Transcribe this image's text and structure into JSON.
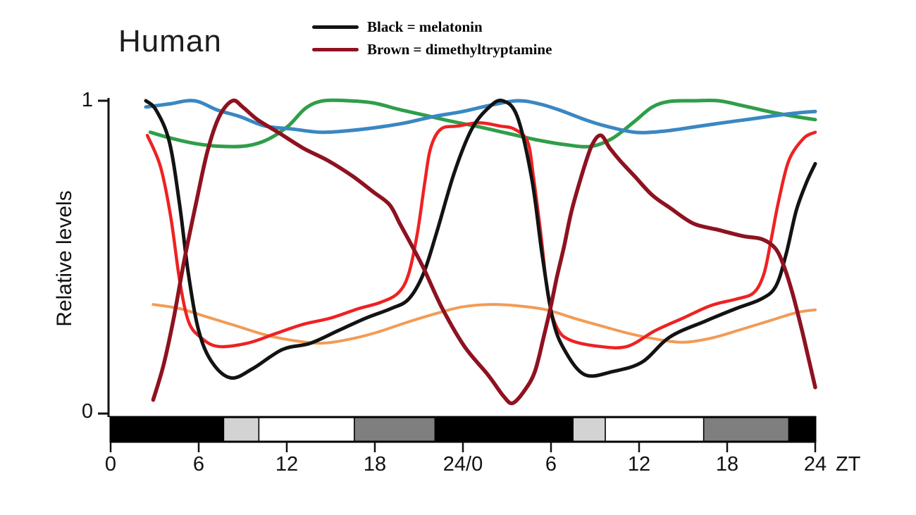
{
  "chart_data": {
    "type": "line",
    "title": "Human",
    "ylabel": "Relative levels",
    "x_axis_unit": "ZT",
    "ylim": [
      0,
      1
    ],
    "xlim_hours": [
      0,
      48
    ],
    "grid": false,
    "legend_position": "top",
    "y_ticks": [
      {
        "value": 1,
        "label": "1"
      },
      {
        "value": 0,
        "label": "0"
      }
    ],
    "x_ticks": [
      {
        "hour": 0,
        "label": "0"
      },
      {
        "hour": 6,
        "label": "6"
      },
      {
        "hour": 12,
        "label": "12"
      },
      {
        "hour": 18,
        "label": "18"
      },
      {
        "hour": 24,
        "label": "24/0"
      },
      {
        "hour": 30,
        "label": "6"
      },
      {
        "hour": 36,
        "label": "12"
      },
      {
        "hour": 42,
        "label": "18"
      },
      {
        "hour": 48,
        "label": "24"
      }
    ],
    "legend": [
      {
        "label": "Black = melatonin",
        "color": "#131313"
      },
      {
        "label": "Brown = dimethyltryptamine",
        "color": "#8e1220"
      }
    ],
    "light_dark_bar": {
      "segments": [
        {
          "from": 0,
          "to": 7.7,
          "color": "#000000"
        },
        {
          "from": 7.7,
          "to": 10.1,
          "color": "#d3d3d3"
        },
        {
          "from": 10.1,
          "to": 16.6,
          "color": "#ffffff"
        },
        {
          "from": 16.6,
          "to": 22.1,
          "color": "#7f7f7f"
        },
        {
          "from": 22.1,
          "to": 31.5,
          "color": "#000000"
        },
        {
          "from": 31.5,
          "to": 33.7,
          "color": "#d3d3d3"
        },
        {
          "from": 33.7,
          "to": 40.4,
          "color": "#ffffff"
        },
        {
          "from": 40.4,
          "to": 46.2,
          "color": "#7f7f7f"
        },
        {
          "from": 46.2,
          "to": 48,
          "color": "#000000"
        }
      ]
    },
    "series": [
      {
        "name": "orange",
        "color": "#f29b55",
        "width": 4,
        "points": [
          [
            2.9,
            0.353
          ],
          [
            4.7,
            0.34
          ],
          [
            6.6,
            0.313
          ],
          [
            8.5,
            0.286
          ],
          [
            10.5,
            0.257
          ],
          [
            12.4,
            0.239
          ],
          [
            14.3,
            0.23
          ],
          [
            16.2,
            0.242
          ],
          [
            18.1,
            0.264
          ],
          [
            20.1,
            0.295
          ],
          [
            22.0,
            0.322
          ],
          [
            23.9,
            0.345
          ],
          [
            25.8,
            0.353
          ],
          [
            27.7,
            0.349
          ],
          [
            29.7,
            0.336
          ],
          [
            31.6,
            0.309
          ],
          [
            33.5,
            0.284
          ],
          [
            35.4,
            0.26
          ],
          [
            37.3,
            0.242
          ],
          [
            39.0,
            0.233
          ],
          [
            40.9,
            0.246
          ],
          [
            42.9,
            0.273
          ],
          [
            44.8,
            0.3
          ],
          [
            46.7,
            0.327
          ],
          [
            48.0,
            0.336
          ]
        ]
      },
      {
        "name": "green",
        "color": "#2f9e49",
        "width": 5,
        "points": [
          [
            2.7,
            0.9
          ],
          [
            4.2,
            0.88
          ],
          [
            5.9,
            0.863
          ],
          [
            7.6,
            0.855
          ],
          [
            9.3,
            0.857
          ],
          [
            10.7,
            0.877
          ],
          [
            12.1,
            0.92
          ],
          [
            13.3,
            0.977
          ],
          [
            14.5,
            1.0
          ],
          [
            16.2,
            1.0
          ],
          [
            17.9,
            0.993
          ],
          [
            19.6,
            0.973
          ],
          [
            21.3,
            0.955
          ],
          [
            23.2,
            0.935
          ],
          [
            25.1,
            0.917
          ],
          [
            27.0,
            0.897
          ],
          [
            28.9,
            0.877
          ],
          [
            30.9,
            0.861
          ],
          [
            32.7,
            0.855
          ],
          [
            34.2,
            0.881
          ],
          [
            35.7,
            0.935
          ],
          [
            36.9,
            0.98
          ],
          [
            38.1,
            0.998
          ],
          [
            39.7,
            1.0
          ],
          [
            41.4,
            1.0
          ],
          [
            43.1,
            0.984
          ],
          [
            44.8,
            0.966
          ],
          [
            46.5,
            0.951
          ],
          [
            48.0,
            0.94
          ]
        ]
      },
      {
        "name": "blue",
        "color": "#3a87c2",
        "width": 5,
        "points": [
          [
            2.4,
            0.98
          ],
          [
            4.0,
            0.99
          ],
          [
            5.7,
            1.0
          ],
          [
            7.3,
            0.97
          ],
          [
            8.8,
            0.95
          ],
          [
            10.5,
            0.92
          ],
          [
            12.4,
            0.91
          ],
          [
            14.3,
            0.9
          ],
          [
            16.2,
            0.905
          ],
          [
            18.1,
            0.915
          ],
          [
            20.1,
            0.93
          ],
          [
            22.0,
            0.95
          ],
          [
            23.9,
            0.965
          ],
          [
            25.8,
            0.985
          ],
          [
            27.7,
            1.0
          ],
          [
            29.2,
            0.99
          ],
          [
            30.6,
            0.97
          ],
          [
            32.3,
            0.94
          ],
          [
            33.7,
            0.92
          ],
          [
            35.7,
            0.9
          ],
          [
            37.6,
            0.903
          ],
          [
            39.5,
            0.915
          ],
          [
            41.4,
            0.928
          ],
          [
            43.3,
            0.94
          ],
          [
            45.3,
            0.953
          ],
          [
            46.9,
            0.962
          ],
          [
            48.0,
            0.966
          ]
        ]
      },
      {
        "name": "red",
        "color": "#ee2222",
        "width": 4.5,
        "points": [
          [
            2.5,
            0.89
          ],
          [
            3.4,
            0.79
          ],
          [
            4.1,
            0.63
          ],
          [
            4.7,
            0.43
          ],
          [
            5.3,
            0.3
          ],
          [
            6.1,
            0.25
          ],
          [
            7.3,
            0.22
          ],
          [
            9.3,
            0.23
          ],
          [
            11.2,
            0.26
          ],
          [
            13.1,
            0.29
          ],
          [
            15.0,
            0.31
          ],
          [
            16.9,
            0.34
          ],
          [
            18.4,
            0.36
          ],
          [
            19.6,
            0.39
          ],
          [
            20.3,
            0.45
          ],
          [
            20.9,
            0.58
          ],
          [
            21.4,
            0.74
          ],
          [
            21.8,
            0.85
          ],
          [
            22.5,
            0.91
          ],
          [
            23.7,
            0.92
          ],
          [
            25.1,
            0.93
          ],
          [
            26.5,
            0.92
          ],
          [
            27.5,
            0.91
          ],
          [
            28.4,
            0.87
          ],
          [
            28.8,
            0.76
          ],
          [
            29.3,
            0.58
          ],
          [
            29.8,
            0.38
          ],
          [
            30.4,
            0.28
          ],
          [
            31.3,
            0.24
          ],
          [
            33.3,
            0.22
          ],
          [
            35.2,
            0.22
          ],
          [
            37.1,
            0.27
          ],
          [
            39.0,
            0.31
          ],
          [
            40.9,
            0.35
          ],
          [
            42.6,
            0.37
          ],
          [
            43.8,
            0.39
          ],
          [
            44.5,
            0.45
          ],
          [
            45.0,
            0.56
          ],
          [
            45.5,
            0.68
          ],
          [
            46.2,
            0.81
          ],
          [
            47.2,
            0.88
          ],
          [
            48.0,
            0.9
          ]
        ]
      },
      {
        "name": "melatonin",
        "color": "#131313",
        "width": 5,
        "points": [
          [
            2.4,
            1.0
          ],
          [
            3.1,
            0.97
          ],
          [
            4.0,
            0.87
          ],
          [
            4.7,
            0.67
          ],
          [
            5.3,
            0.45
          ],
          [
            6.0,
            0.27
          ],
          [
            6.9,
            0.17
          ],
          [
            8.2,
            0.12
          ],
          [
            9.7,
            0.15
          ],
          [
            11.7,
            0.21
          ],
          [
            13.6,
            0.23
          ],
          [
            15.5,
            0.27
          ],
          [
            17.4,
            0.31
          ],
          [
            19.1,
            0.34
          ],
          [
            20.3,
            0.37
          ],
          [
            21.3,
            0.45
          ],
          [
            22.2,
            0.58
          ],
          [
            23.4,
            0.77
          ],
          [
            24.6,
            0.91
          ],
          [
            25.8,
            0.98
          ],
          [
            26.7,
            1.0
          ],
          [
            27.7,
            0.95
          ],
          [
            28.7,
            0.75
          ],
          [
            29.4,
            0.51
          ],
          [
            30.1,
            0.31
          ],
          [
            30.9,
            0.21
          ],
          [
            32.3,
            0.13
          ],
          [
            34.2,
            0.14
          ],
          [
            36.2,
            0.17
          ],
          [
            38.1,
            0.25
          ],
          [
            40.5,
            0.3
          ],
          [
            42.6,
            0.34
          ],
          [
            44.3,
            0.37
          ],
          [
            45.3,
            0.41
          ],
          [
            46.0,
            0.51
          ],
          [
            46.7,
            0.65
          ],
          [
            47.4,
            0.74
          ],
          [
            48.0,
            0.8
          ]
        ]
      },
      {
        "name": "dimethyltryptamine",
        "color": "#8e1220",
        "width": 5.5,
        "points": [
          [
            2.9,
            0.05
          ],
          [
            3.6,
            0.16
          ],
          [
            4.3,
            0.31
          ],
          [
            5.0,
            0.49
          ],
          [
            5.8,
            0.67
          ],
          [
            6.6,
            0.84
          ],
          [
            7.4,
            0.95
          ],
          [
            8.3,
            1.0
          ],
          [
            9.0,
            0.98
          ],
          [
            10.0,
            0.94
          ],
          [
            11.4,
            0.9
          ],
          [
            13.1,
            0.85
          ],
          [
            14.8,
            0.81
          ],
          [
            16.5,
            0.76
          ],
          [
            17.9,
            0.71
          ],
          [
            19.0,
            0.67
          ],
          [
            19.7,
            0.61
          ],
          [
            20.4,
            0.55
          ],
          [
            21.3,
            0.47
          ],
          [
            22.6,
            0.34
          ],
          [
            24.1,
            0.22
          ],
          [
            25.7,
            0.13
          ],
          [
            26.8,
            0.06
          ],
          [
            27.4,
            0.04
          ],
          [
            28.2,
            0.08
          ],
          [
            28.9,
            0.14
          ],
          [
            29.5,
            0.25
          ],
          [
            30.0,
            0.35
          ],
          [
            30.4,
            0.44
          ],
          [
            30.9,
            0.54
          ],
          [
            31.4,
            0.65
          ],
          [
            32.2,
            0.78
          ],
          [
            32.8,
            0.86
          ],
          [
            33.4,
            0.89
          ],
          [
            34.0,
            0.85
          ],
          [
            34.7,
            0.81
          ],
          [
            35.7,
            0.76
          ],
          [
            36.9,
            0.7
          ],
          [
            38.1,
            0.66
          ],
          [
            39.7,
            0.61
          ],
          [
            41.4,
            0.59
          ],
          [
            43.1,
            0.57
          ],
          [
            44.4,
            0.56
          ],
          [
            45.3,
            0.53
          ],
          [
            45.9,
            0.47
          ],
          [
            46.5,
            0.38
          ],
          [
            47.1,
            0.27
          ],
          [
            47.6,
            0.17
          ],
          [
            48.0,
            0.09
          ]
        ]
      }
    ]
  }
}
